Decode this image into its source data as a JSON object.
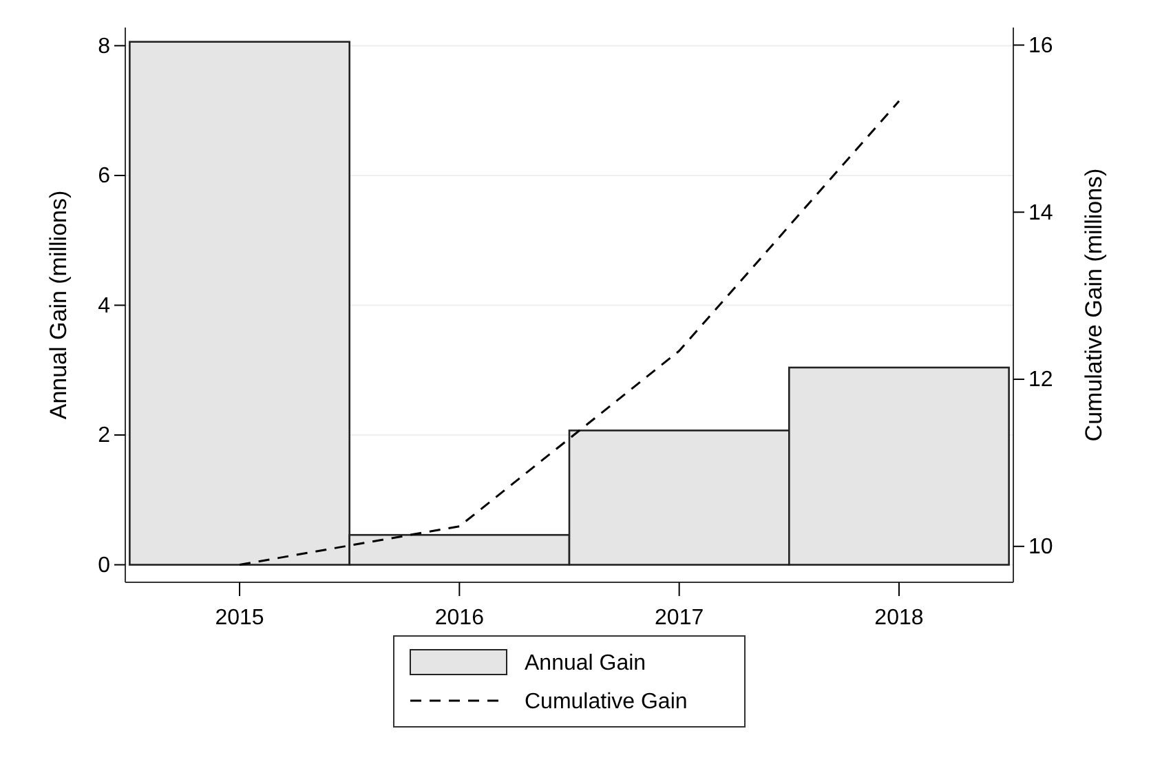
{
  "chart_data": {
    "type": "bar",
    "categories": [
      "2015",
      "2016",
      "2017",
      "2018"
    ],
    "ylabel": "Annual Gain (millions)",
    "y2label": "Cumulative Gain (millions)",
    "series": [
      {
        "name": "Annual Gain",
        "color": "#e5e5e5",
        "values": [
          8.06,
          0.46,
          2.07,
          3.04
        ]
      },
      {
        "name": "Cumulative Gain",
        "type": "line",
        "axis": "y2",
        "color": "#000000",
        "line_style": "dashed",
        "values": [
          9.78,
          10.24,
          12.34,
          15.33
        ]
      }
    ],
    "ylim": [
      -0.27,
      8.28
    ],
    "yticks": [
      0,
      2,
      4,
      6,
      8
    ],
    "y2lim": [
      9.57,
      16.21
    ],
    "y2ticks": [
      10,
      12,
      14,
      16
    ],
    "grid": "y",
    "legend": "bottom"
  }
}
